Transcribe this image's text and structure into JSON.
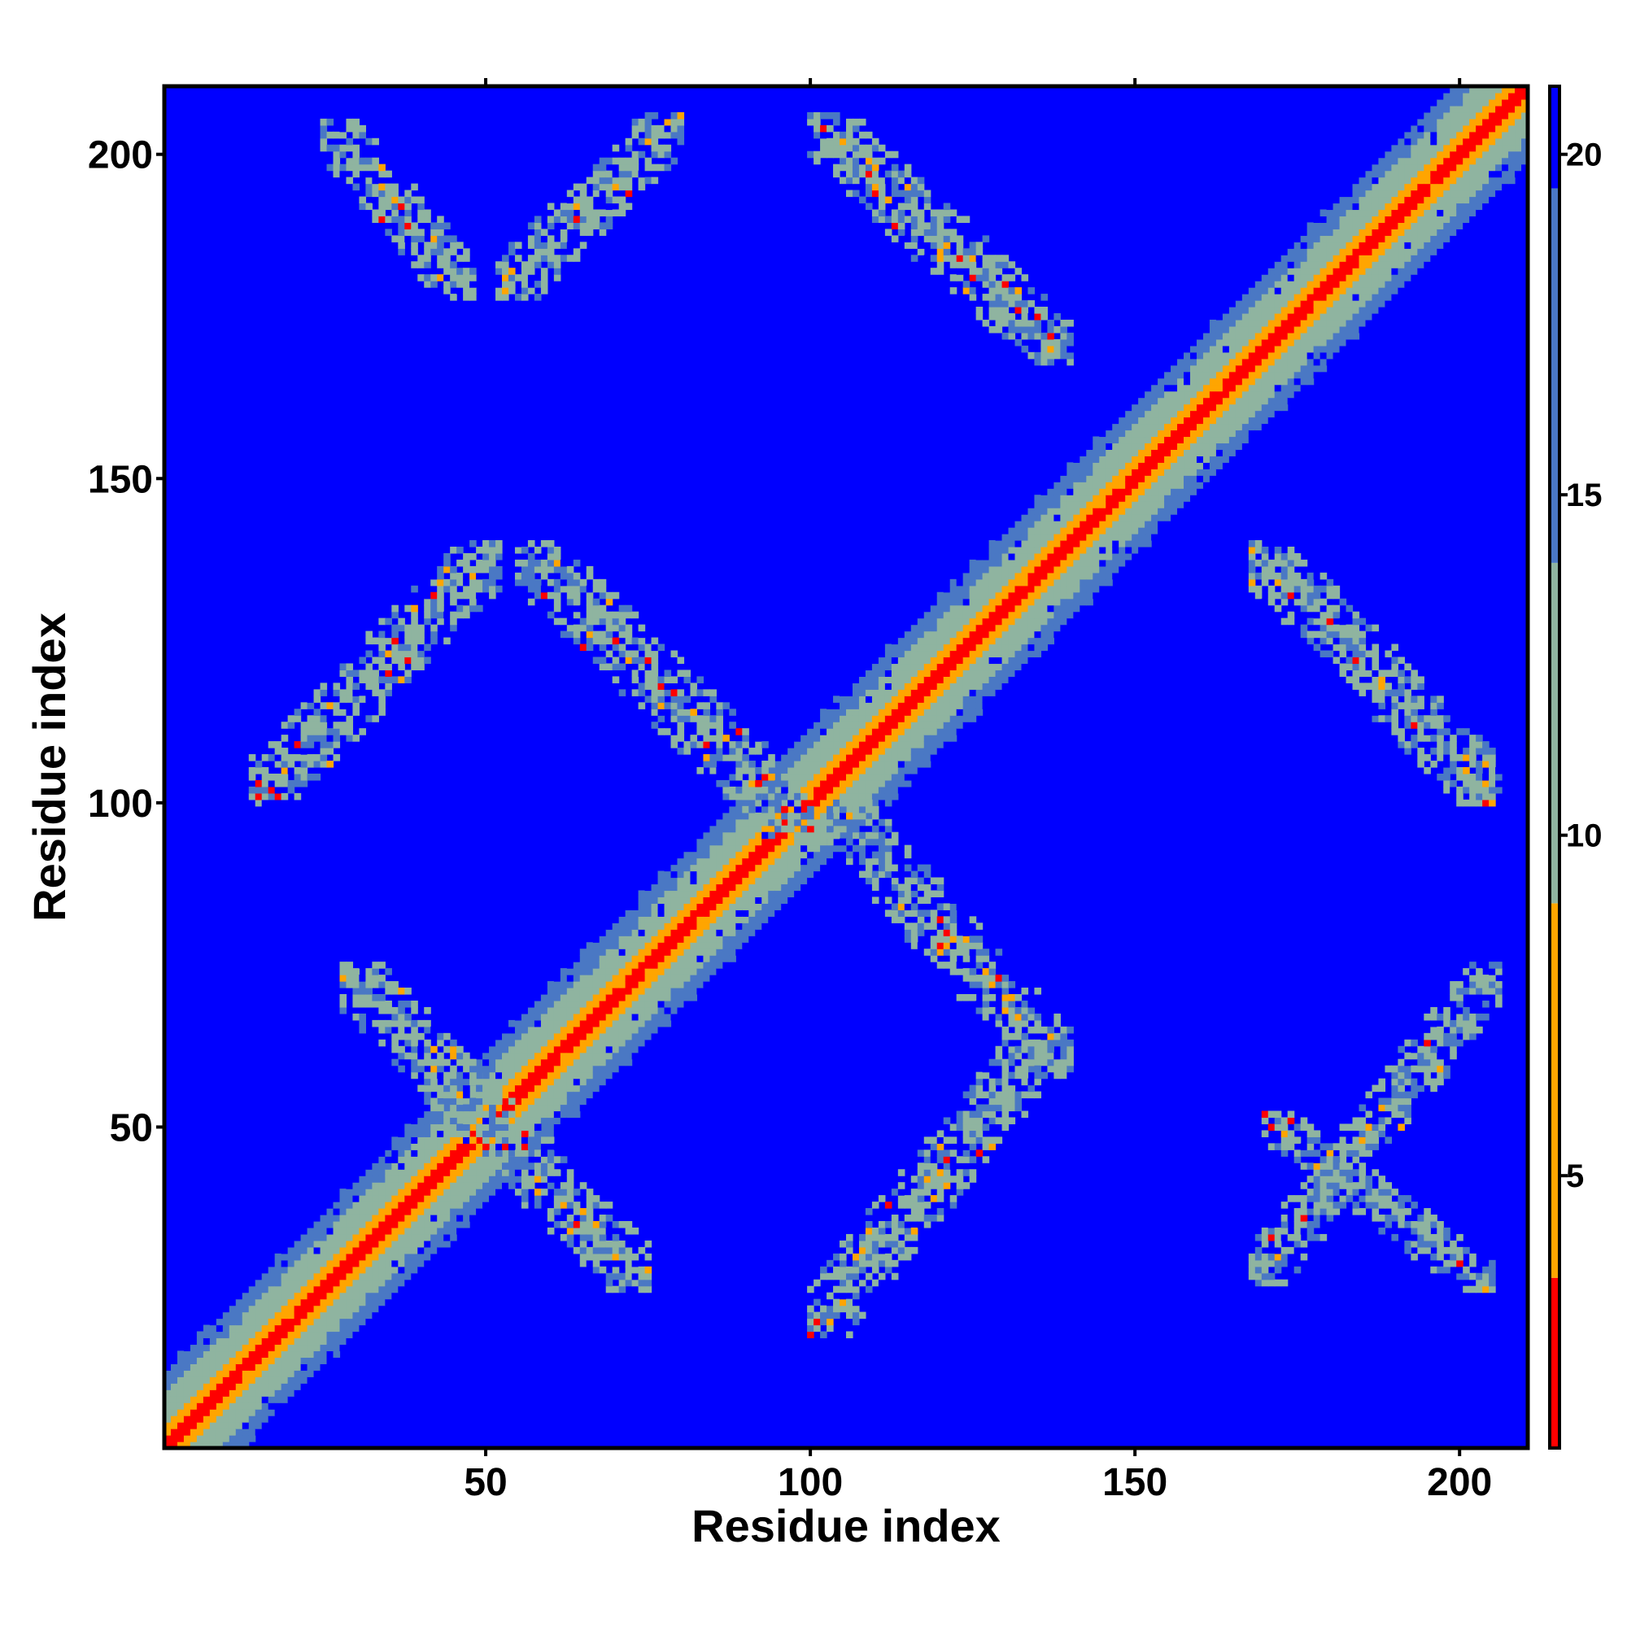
{
  "chart_data": {
    "type": "heatmap",
    "xlabel": "Residue index",
    "ylabel": "Residue index",
    "n": 210,
    "xlim": [
      1,
      210
    ],
    "ylim": [
      1,
      210
    ],
    "x_ticks": [
      50,
      100,
      150,
      200
    ],
    "y_ticks": [
      50,
      100,
      150,
      200
    ],
    "colorbar": {
      "range": [
        1,
        21
      ],
      "ticks": [
        5,
        10,
        15,
        20
      ],
      "colors": {
        "high": "#0000ff",
        "upper": "#4a78c4",
        "mid": "#8fb4a0",
        "lower": "#ffa500",
        "low": "#ff0000"
      }
    },
    "diagonal_band": {
      "core_distance": 2,
      "band_halfwidth": 12
    },
    "contact_regions": [
      {
        "name": "seg-10-40-vs-50-80",
        "x": [
          28,
          75
        ],
        "y": [
          25,
          75
        ],
        "direction": "anti",
        "halfwidth": 7
      },
      {
        "name": "seg-10-40-vs-100-130",
        "x": [
          100,
          135
        ],
        "y": [
          18,
          62
        ],
        "direction": "parallel",
        "halfwidth": 7
      },
      {
        "name": "seg-60-80-vs-95-135",
        "x": [
          103,
          140
        ],
        "y": [
          58,
          100
        ],
        "direction": "anti",
        "halfwidth": 7
      },
      {
        "name": "seg-55-100-vs-110-140",
        "x": [
          55,
          100
        ],
        "y": [
          95,
          140
        ],
        "direction": "anti",
        "halfwidth": 7
      },
      {
        "name": "seg-15-50-vs-110-140",
        "x": [
          14,
          52
        ],
        "y": [
          100,
          140
        ],
        "direction": "parallel",
        "halfwidth": 7
      },
      {
        "name": "seg-25-45-vs-180-200",
        "x": [
          25,
          48
        ],
        "y": [
          178,
          205
        ],
        "direction": "anti",
        "halfwidth": 6
      },
      {
        "name": "seg-55-75-vs-180-205",
        "x": [
          52,
          80
        ],
        "y": [
          178,
          206
        ],
        "direction": "parallel",
        "halfwidth": 6
      },
      {
        "name": "seg-100-140-vs-170-205",
        "x": [
          100,
          140
        ],
        "y": [
          168,
          206
        ],
        "direction": "anti",
        "halfwidth": 7
      },
      {
        "name": "seg-170-205-vs-100-140",
        "x": [
          168,
          206
        ],
        "y": [
          100,
          140
        ],
        "direction": "anti",
        "halfwidth": 7
      },
      {
        "name": "seg-165-205-vs-15-75",
        "x": [
          168,
          206
        ],
        "y": [
          25,
          75
        ],
        "direction": "parallel",
        "halfwidth": 6
      },
      {
        "name": "seg-170-205-vs-25-50",
        "x": [
          170,
          205
        ],
        "y": [
          25,
          52
        ],
        "direction": "anti",
        "halfwidth": 5
      }
    ]
  }
}
